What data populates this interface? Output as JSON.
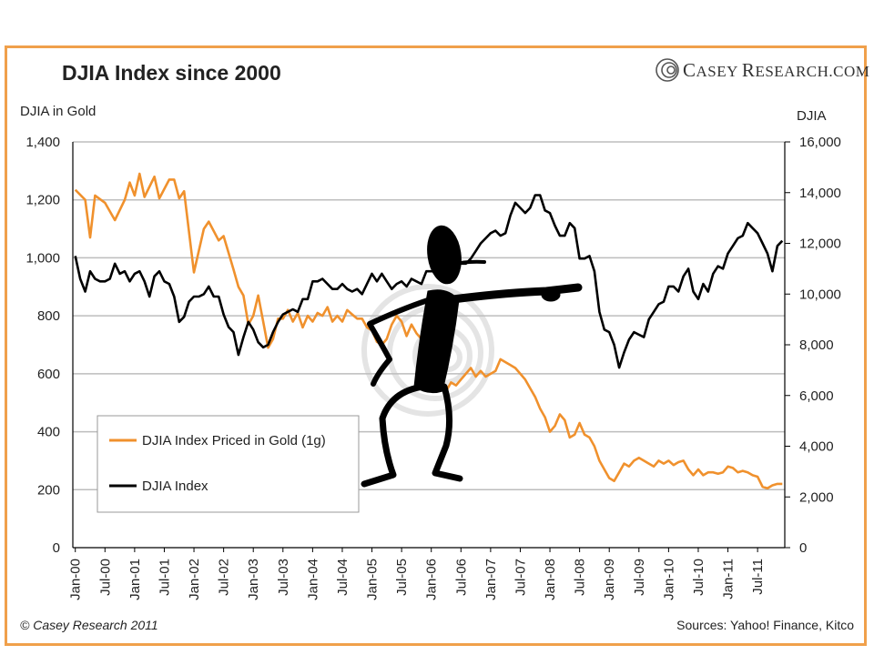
{
  "header": {
    "title": "DJIA Index since 2000",
    "logo_text_c": "C",
    "logo_text_asey": "ASEY",
    "logo_text_r": "R",
    "logo_text_esearch": "ESEARCH.COM"
  },
  "footer": {
    "copyright": "© Casey Research 2011",
    "sources": "Sources: Yahoo! Finance, Kitco"
  },
  "colors": {
    "gold_series": "#f0912d",
    "djia_series": "#000000",
    "frame": "#f0a04b",
    "grid": "#bdbdbd"
  },
  "decoration": {
    "cartoon": "stick-figure-pointing-icon",
    "watermark": "casey-spiral-logo-watermark"
  },
  "chart_data": {
    "type": "line",
    "title": "DJIA Index since 2000",
    "ylabel_left": "DJIA in Gold",
    "ylabel_right": "DJIA",
    "ylim_left": [
      0,
      1400
    ],
    "ylim_right": [
      0,
      16000
    ],
    "y_ticks_left": [
      "0",
      "200",
      "400",
      "600",
      "800",
      "1,000",
      "1,200",
      "1,400"
    ],
    "y_ticks_right": [
      "0",
      "2,000",
      "4,000",
      "6,000",
      "8,000",
      "10,000",
      "12,000",
      "14,000",
      "16,000"
    ],
    "x_tick_labels": [
      "Jan-00",
      "Jul-00",
      "Jan-01",
      "Jul-01",
      "Jan-02",
      "Jul-02",
      "Jan-03",
      "Jul-03",
      "Jan-04",
      "Jul-04",
      "Jan-05",
      "Jul-05",
      "Jan-06",
      "Jul-06",
      "Jan-07",
      "Jul-07",
      "Jan-08",
      "Jul-08",
      "Jan-09",
      "Jul-09",
      "Jan-10",
      "Jul-10",
      "Jan-11",
      "Jul-11"
    ],
    "grid": "horizontal",
    "legend_position": "lower-left",
    "series": [
      {
        "name": "DJIA Index Priced in Gold (1g)",
        "axis": "left",
        "points": [
          [
            "Jan-00",
            1235
          ],
          [
            "Mar-00",
            1200
          ],
          [
            "Apr-00",
            1070
          ],
          [
            "May-00",
            1215
          ],
          [
            "Jul-00",
            1190
          ],
          [
            "Sep-00",
            1130
          ],
          [
            "Nov-00",
            1200
          ],
          [
            "Dec-00",
            1260
          ],
          [
            "Jan-01",
            1215
          ],
          [
            "Feb-01",
            1290
          ],
          [
            "Mar-01",
            1210
          ],
          [
            "May-01",
            1280
          ],
          [
            "Jun-01",
            1205
          ],
          [
            "Aug-01",
            1270
          ],
          [
            "Sep-01",
            1270
          ],
          [
            "Oct-01",
            1205
          ],
          [
            "Nov-01",
            1230
          ],
          [
            "Jan-02",
            950
          ],
          [
            "Mar-02",
            1100
          ],
          [
            "Apr-02",
            1125
          ],
          [
            "Jun-02",
            1060
          ],
          [
            "Jul-02",
            1075
          ],
          [
            "Sep-02",
            960
          ],
          [
            "Oct-02",
            900
          ],
          [
            "Nov-02",
            870
          ],
          [
            "Dec-02",
            770
          ],
          [
            "Jan-03",
            800
          ],
          [
            "Feb-03",
            870
          ],
          [
            "Mar-03",
            780
          ],
          [
            "Apr-03",
            690
          ],
          [
            "May-03",
            720
          ],
          [
            "Jun-03",
            790
          ],
          [
            "Jul-03",
            790
          ],
          [
            "Aug-03",
            820
          ],
          [
            "Sep-03",
            780
          ],
          [
            "Oct-03",
            810
          ],
          [
            "Nov-03",
            760
          ],
          [
            "Dec-03",
            800
          ],
          [
            "Jan-04",
            780
          ],
          [
            "Feb-04",
            810
          ],
          [
            "Mar-04",
            800
          ],
          [
            "Apr-04",
            830
          ],
          [
            "May-04",
            780
          ],
          [
            "Jun-04",
            800
          ],
          [
            "Jul-04",
            780
          ],
          [
            "Aug-04",
            820
          ],
          [
            "Sep-04",
            805
          ],
          [
            "Oct-04",
            790
          ],
          [
            "Nov-04",
            790
          ],
          [
            "Dec-04",
            760
          ],
          [
            "Jan-05",
            750
          ],
          [
            "Feb-05",
            710
          ],
          [
            "Mar-05",
            700
          ],
          [
            "Apr-05",
            720
          ],
          [
            "May-05",
            770
          ],
          [
            "Jun-05",
            800
          ],
          [
            "Jul-05",
            780
          ],
          [
            "Aug-05",
            730
          ],
          [
            "Sep-05",
            770
          ],
          [
            "Oct-05",
            740
          ],
          [
            "Nov-05",
            720
          ],
          [
            "Dec-05",
            660
          ],
          [
            "Jan-06",
            640
          ],
          [
            "Feb-06",
            600
          ],
          [
            "Mar-06",
            580
          ],
          [
            "Apr-06",
            540
          ],
          [
            "May-06",
            570
          ],
          [
            "Jun-06",
            560
          ],
          [
            "Jul-06",
            580
          ],
          [
            "Aug-06",
            600
          ],
          [
            "Sep-06",
            620
          ],
          [
            "Oct-06",
            590
          ],
          [
            "Nov-06",
            610
          ],
          [
            "Dec-06",
            590
          ],
          [
            "Jan-07",
            600
          ],
          [
            "Feb-07",
            610
          ],
          [
            "Mar-07",
            650
          ],
          [
            "Apr-07",
            640
          ],
          [
            "May-07",
            630
          ],
          [
            "Jun-07",
            620
          ],
          [
            "Jul-07",
            600
          ],
          [
            "Aug-07",
            580
          ],
          [
            "Sep-07",
            550
          ],
          [
            "Oct-07",
            520
          ],
          [
            "Nov-07",
            480
          ],
          [
            "Dec-07",
            450
          ],
          [
            "Jan-08",
            400
          ],
          [
            "Feb-08",
            420
          ],
          [
            "Mar-08",
            460
          ],
          [
            "Apr-08",
            440
          ],
          [
            "May-08",
            380
          ],
          [
            "Jun-08",
            390
          ],
          [
            "Jul-08",
            430
          ],
          [
            "Aug-08",
            390
          ],
          [
            "Sep-08",
            380
          ],
          [
            "Oct-08",
            350
          ],
          [
            "Nov-08",
            300
          ],
          [
            "Dec-08",
            270
          ],
          [
            "Jan-09",
            240
          ],
          [
            "Feb-09",
            230
          ],
          [
            "Mar-09",
            260
          ],
          [
            "Apr-09",
            290
          ],
          [
            "May-09",
            280
          ],
          [
            "Jun-09",
            300
          ],
          [
            "Jul-09",
            310
          ],
          [
            "Aug-09",
            300
          ],
          [
            "Sep-09",
            290
          ],
          [
            "Oct-09",
            280
          ],
          [
            "Nov-09",
            300
          ],
          [
            "Dec-09",
            290
          ],
          [
            "Jan-10",
            300
          ],
          [
            "Feb-10",
            285
          ],
          [
            "Mar-10",
            295
          ],
          [
            "Apr-10",
            300
          ],
          [
            "May-10",
            270
          ],
          [
            "Jun-10",
            250
          ],
          [
            "Jul-10",
            270
          ],
          [
            "Aug-10",
            250
          ],
          [
            "Sep-10",
            260
          ],
          [
            "Oct-10",
            260
          ],
          [
            "Nov-10",
            255
          ],
          [
            "Dec-10",
            260
          ],
          [
            "Jan-11",
            280
          ],
          [
            "Feb-11",
            275
          ],
          [
            "Mar-11",
            260
          ],
          [
            "Apr-11",
            265
          ],
          [
            "May-11",
            260
          ],
          [
            "Jun-11",
            250
          ],
          [
            "Jul-11",
            245
          ],
          [
            "Aug-11",
            210
          ],
          [
            "Sep-11",
            205
          ],
          [
            "Oct-11",
            215
          ],
          [
            "Nov-11",
            220
          ],
          [
            "Dec-11",
            220
          ]
        ]
      },
      {
        "name": "DJIA Index",
        "axis": "right",
        "points": [
          [
            "Jan-00",
            11500
          ],
          [
            "Feb-00",
            10600
          ],
          [
            "Mar-00",
            10100
          ],
          [
            "Apr-00",
            10900
          ],
          [
            "May-00",
            10600
          ],
          [
            "Jun-00",
            10500
          ],
          [
            "Jul-00",
            10500
          ],
          [
            "Aug-00",
            10600
          ],
          [
            "Sep-00",
            11200
          ],
          [
            "Oct-00",
            10800
          ],
          [
            "Nov-00",
            10900
          ],
          [
            "Dec-00",
            10500
          ],
          [
            "Jan-01",
            10800
          ],
          [
            "Feb-01",
            10900
          ],
          [
            "Mar-01",
            10500
          ],
          [
            "Apr-01",
            9900
          ],
          [
            "May-01",
            10700
          ],
          [
            "Jun-01",
            10900
          ],
          [
            "Jul-01",
            10500
          ],
          [
            "Aug-01",
            10400
          ],
          [
            "Sep-01",
            9900
          ],
          [
            "Oct-01",
            8900
          ],
          [
            "Nov-01",
            9100
          ],
          [
            "Dec-01",
            9700
          ],
          [
            "Jan-02",
            9900
          ],
          [
            "Feb-02",
            9900
          ],
          [
            "Mar-02",
            10000
          ],
          [
            "Apr-02",
            10300
          ],
          [
            "May-02",
            9900
          ],
          [
            "Jun-02",
            9900
          ],
          [
            "Jul-02",
            9200
          ],
          [
            "Aug-02",
            8700
          ],
          [
            "Sep-02",
            8500
          ],
          [
            "Oct-02",
            7600
          ],
          [
            "Nov-02",
            8300
          ],
          [
            "Dec-02",
            8900
          ],
          [
            "Jan-03",
            8600
          ],
          [
            "Feb-03",
            8100
          ],
          [
            "Mar-03",
            7900
          ],
          [
            "Apr-03",
            8000
          ],
          [
            "May-03",
            8500
          ],
          [
            "Jun-03",
            8900
          ],
          [
            "Jul-03",
            9200
          ],
          [
            "Aug-03",
            9300
          ],
          [
            "Sep-03",
            9400
          ],
          [
            "Oct-03",
            9300
          ],
          [
            "Nov-03",
            9800
          ],
          [
            "Dec-03",
            9800
          ],
          [
            "Jan-04",
            10500
          ],
          [
            "Feb-04",
            10500
          ],
          [
            "Mar-04",
            10600
          ],
          [
            "Apr-04",
            10400
          ],
          [
            "May-04",
            10200
          ],
          [
            "Jun-04",
            10200
          ],
          [
            "Jul-04",
            10400
          ],
          [
            "Aug-04",
            10200
          ],
          [
            "Sep-04",
            10100
          ],
          [
            "Oct-04",
            10200
          ],
          [
            "Nov-04",
            10000
          ],
          [
            "Dec-04",
            10400
          ],
          [
            "Jan-05",
            10800
          ],
          [
            "Feb-05",
            10500
          ],
          [
            "Mar-05",
            10800
          ],
          [
            "Apr-05",
            10500
          ],
          [
            "May-05",
            10200
          ],
          [
            "Jun-05",
            10400
          ],
          [
            "Jul-05",
            10500
          ],
          [
            "Aug-05",
            10300
          ],
          [
            "Sep-05",
            10600
          ],
          [
            "Oct-05",
            10500
          ],
          [
            "Nov-05",
            10400
          ],
          [
            "Dec-05",
            10900
          ],
          [
            "Jan-06",
            10900
          ],
          [
            "Feb-06",
            10900
          ],
          [
            "Mar-06",
            11000
          ],
          [
            "Apr-06",
            11100
          ],
          [
            "May-06",
            11400
          ],
          [
            "Jun-06",
            11200
          ],
          [
            "Jul-06",
            11200
          ],
          [
            "Aug-06",
            11200
          ],
          [
            "Sep-06",
            11400
          ],
          [
            "Oct-06",
            11700
          ],
          [
            "Nov-06",
            12000
          ],
          [
            "Dec-06",
            12200
          ],
          [
            "Jan-07",
            12400
          ],
          [
            "Feb-07",
            12500
          ],
          [
            "Mar-07",
            12300
          ],
          [
            "Apr-07",
            12400
          ],
          [
            "May-07",
            13100
          ],
          [
            "Jun-07",
            13600
          ],
          [
            "Jul-07",
            13400
          ],
          [
            "Aug-07",
            13200
          ],
          [
            "Sep-07",
            13400
          ],
          [
            "Oct-07",
            13900
          ],
          [
            "Nov-07",
            13900
          ],
          [
            "Dec-07",
            13300
          ],
          [
            "Jan-08",
            13200
          ],
          [
            "Feb-08",
            12700
          ],
          [
            "Mar-08",
            12300
          ],
          [
            "Apr-08",
            12300
          ],
          [
            "May-08",
            12800
          ],
          [
            "Jun-08",
            12600
          ],
          [
            "Jul-08",
            11400
          ],
          [
            "Aug-08",
            11400
          ],
          [
            "Sep-08",
            11500
          ],
          [
            "Oct-08",
            10900
          ],
          [
            "Nov-08",
            9300
          ],
          [
            "Dec-08",
            8600
          ],
          [
            "Jan-09",
            8500
          ],
          [
            "Feb-09",
            8000
          ],
          [
            "Mar-09",
            7100
          ],
          [
            "Apr-09",
            7700
          ],
          [
            "May-09",
            8200
          ],
          [
            "Jun-09",
            8500
          ],
          [
            "Jul-09",
            8400
          ],
          [
            "Aug-09",
            8300
          ],
          [
            "Sep-09",
            9000
          ],
          [
            "Oct-09",
            9300
          ],
          [
            "Nov-09",
            9600
          ],
          [
            "Dec-09",
            9700
          ],
          [
            "Jan-10",
            10300
          ],
          [
            "Feb-10",
            10300
          ],
          [
            "Mar-10",
            10100
          ],
          [
            "Apr-10",
            10700
          ],
          [
            "May-10",
            11000
          ],
          [
            "Jun-10",
            10100
          ],
          [
            "Jul-10",
            9800
          ],
          [
            "Aug-10",
            10400
          ],
          [
            "Sep-10",
            10100
          ],
          [
            "Oct-10",
            10800
          ],
          [
            "Nov-10",
            11100
          ],
          [
            "Dec-10",
            11000
          ],
          [
            "Jan-11",
            11600
          ],
          [
            "Feb-11",
            11900
          ],
          [
            "Mar-11",
            12200
          ],
          [
            "Apr-11",
            12300
          ],
          [
            "May-11",
            12800
          ],
          [
            "Jun-11",
            12600
          ],
          [
            "Jul-11",
            12400
          ],
          [
            "Aug-11",
            12000
          ],
          [
            "Sep-11",
            11600
          ],
          [
            "Oct-11",
            10900
          ],
          [
            "Nov-11",
            11900
          ],
          [
            "Dec-11",
            12100
          ]
        ]
      }
    ]
  }
}
